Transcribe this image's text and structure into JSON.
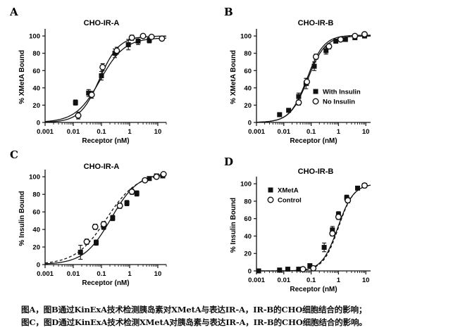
{
  "chart_data": [
    {
      "type": "scatter",
      "panel_letter": "A",
      "title": "CHO-IR-A",
      "xlabel": "Receptor (nM)",
      "ylabel": "% XMetA Bound",
      "x_scale": "log",
      "xlim": [
        0.001,
        20
      ],
      "ylim": [
        0,
        105
      ],
      "x_tick_labels": [
        "0.001",
        "0.01",
        "0.1",
        "1",
        "10"
      ],
      "y_tick_labels": [
        "0",
        "20",
        "40",
        "60",
        "80",
        "100"
      ],
      "series": [
        {
          "marker": "filled-square",
          "color": "#111111",
          "points": [
            {
              "x": 0.012,
              "y": 23,
              "err": 3
            },
            {
              "x": 0.035,
              "y": 34,
              "err": 4
            },
            {
              "x": 0.1,
              "y": 54,
              "err": 5
            },
            {
              "x": 0.3,
              "y": 80,
              "err": 5
            },
            {
              "x": 0.9,
              "y": 90,
              "err": 6
            },
            {
              "x": 2.0,
              "y": 94,
              "err": 4
            },
            {
              "x": 5.0,
              "y": 95,
              "err": 3
            }
          ],
          "fit": {
            "ec50": 0.09,
            "hill": 1.0,
            "top": 98,
            "bottom": 0,
            "style": "solid"
          }
        },
        {
          "marker": "open-circle",
          "color": "#111111",
          "points": [
            {
              "x": 0.015,
              "y": 8,
              "err": 4
            },
            {
              "x": 0.045,
              "y": 32,
              "err": 4
            },
            {
              "x": 0.11,
              "y": 64,
              "err": 4
            },
            {
              "x": 0.35,
              "y": 83,
              "err": 4
            },
            {
              "x": 1.2,
              "y": 98,
              "err": 3
            },
            {
              "x": 3.0,
              "y": 100,
              "err": 2
            },
            {
              "x": 6.0,
              "y": 99,
              "err": 2
            },
            {
              "x": 14.0,
              "y": 97,
              "err": 2
            }
          ],
          "fit": {
            "ec50": 0.085,
            "hill": 1.25,
            "top": 100,
            "bottom": 0,
            "style": "solid"
          }
        }
      ]
    },
    {
      "type": "scatter",
      "panel_letter": "B",
      "title": "CHO-IR-B",
      "xlabel": "Receptor (nM)",
      "ylabel": "% XMetA Bound",
      "x_scale": "log",
      "xlim": [
        0.001,
        15
      ],
      "ylim": [
        0,
        105
      ],
      "x_tick_labels": [
        "0.001",
        "0.01",
        "0.1",
        "1",
        "10"
      ],
      "y_tick_labels": [
        "0",
        "20",
        "40",
        "60",
        "80",
        "100"
      ],
      "legend": [
        {
          "label": "With Insulin",
          "marker": "filled-square"
        },
        {
          "label": "No Insulin",
          "marker": "open-circle"
        }
      ],
      "series": [
        {
          "name": "With Insulin",
          "marker": "filled-square",
          "color": "#111111",
          "points": [
            {
              "x": 0.007,
              "y": 9,
              "err": 2
            },
            {
              "x": 0.015,
              "y": 14,
              "err": 2
            },
            {
              "x": 0.035,
              "y": 30,
              "err": 4
            },
            {
              "x": 0.065,
              "y": 45,
              "err": 6
            },
            {
              "x": 0.13,
              "y": 65,
              "err": 5
            },
            {
              "x": 0.35,
              "y": 83,
              "err": 4
            },
            {
              "x": 0.8,
              "y": 94,
              "err": 2
            },
            {
              "x": 1.8,
              "y": 96,
              "err": 2
            },
            {
              "x": 4.0,
              "y": 98,
              "err": 2
            },
            {
              "x": 9.0,
              "y": 100,
              "err": 2
            }
          ],
          "fit": {
            "ec50": 0.075,
            "hill": 1.35,
            "top": 100,
            "bottom": 0,
            "style": "solid"
          }
        },
        {
          "name": "No Insulin",
          "marker": "open-circle",
          "color": "#111111",
          "points": [
            {
              "x": 0.035,
              "y": 23,
              "err": 3
            },
            {
              "x": 0.07,
              "y": 47,
              "err": 4
            },
            {
              "x": 0.15,
              "y": 76,
              "err": 3
            },
            {
              "x": 0.45,
              "y": 88,
              "err": 3
            },
            {
              "x": 1.2,
              "y": 96,
              "err": 2
            },
            {
              "x": 4.0,
              "y": 100,
              "err": 2
            },
            {
              "x": 9.0,
              "y": 102,
              "err": 2
            }
          ],
          "fit": {
            "ec50": 0.07,
            "hill": 1.4,
            "top": 101,
            "bottom": 0,
            "style": "solid"
          }
        }
      ]
    },
    {
      "type": "scatter",
      "panel_letter": "C",
      "title": "CHO-IR-A",
      "xlabel": "Receptor (nM)",
      "ylabel": "% Insulin Bound",
      "x_scale": "log",
      "xlim": [
        0.001,
        20
      ],
      "ylim": [
        0,
        105
      ],
      "x_tick_labels": [
        "0.001",
        "0.01",
        "0.1",
        "1",
        "10"
      ],
      "y_tick_labels": [
        "0",
        "20",
        "40",
        "60",
        "80",
        "100"
      ],
      "series": [
        {
          "marker": "filled-square",
          "color": "#111111",
          "points": [
            {
              "x": 0.018,
              "y": 14,
              "err": 8
            },
            {
              "x": 0.065,
              "y": 25,
              "err": 3
            },
            {
              "x": 0.12,
              "y": 43,
              "err": 3
            },
            {
              "x": 0.25,
              "y": 53,
              "err": 3
            },
            {
              "x": 0.8,
              "y": 70,
              "err": 3
            },
            {
              "x": 1.8,
              "y": 81,
              "err": 3
            },
            {
              "x": 5.0,
              "y": 98,
              "err": 2
            },
            {
              "x": 9.0,
              "y": 101,
              "err": 2
            },
            {
              "x": 15.0,
              "y": 101,
              "err": 2
            }
          ],
          "fit": {
            "ec50": 0.22,
            "hill": 0.9,
            "top": 105,
            "bottom": 0,
            "style": "solid"
          }
        },
        {
          "marker": "open-circle",
          "color": "#111111",
          "points": [
            {
              "x": 0.03,
              "y": 26,
              "err": 3
            },
            {
              "x": 0.06,
              "y": 43,
              "err": 3
            },
            {
              "x": 0.12,
              "y": 46,
              "err": 3
            },
            {
              "x": 0.45,
              "y": 67,
              "err": 3
            },
            {
              "x": 1.2,
              "y": 83,
              "err": 3
            },
            {
              "x": 3.5,
              "y": 96,
              "err": 2
            },
            {
              "x": 9.0,
              "y": 100,
              "err": 2
            },
            {
              "x": 16.0,
              "y": 103,
              "err": 2
            }
          ],
          "fit": {
            "ec50": 0.15,
            "hill": 0.8,
            "top": 104,
            "bottom": 0,
            "style": "dashed"
          }
        }
      ]
    },
    {
      "type": "scatter",
      "panel_letter": "D",
      "title": "CHO-IR-B",
      "xlabel": "Receptor (nM)",
      "ylabel": "% Insulin Bound",
      "x_scale": "log",
      "xlim": [
        0.001,
        15
      ],
      "ylim": [
        0,
        105
      ],
      "x_tick_labels": [
        "0.001",
        "0.01",
        "0.1",
        "1",
        "10"
      ],
      "y_tick_labels": [
        "0",
        "20",
        "40",
        "60",
        "80",
        "100"
      ],
      "legend": [
        {
          "label": "XMetA",
          "marker": "filled-square"
        },
        {
          "label": "Control",
          "marker": "open-circle"
        }
      ],
      "series": [
        {
          "name": "XMetA",
          "marker": "filled-square",
          "color": "#111111",
          "points": [
            {
              "x": 0.0012,
              "y": 0,
              "err": 1
            },
            {
              "x": 0.007,
              "y": 1,
              "err": 1
            },
            {
              "x": 0.014,
              "y": 2,
              "err": 1
            },
            {
              "x": 0.035,
              "y": 2,
              "err": 1
            },
            {
              "x": 0.09,
              "y": 6,
              "err": 2
            },
            {
              "x": 0.3,
              "y": 27,
              "err": 5
            },
            {
              "x": 0.6,
              "y": 47,
              "err": 4
            },
            {
              "x": 1.0,
              "y": 65,
              "err": 3
            },
            {
              "x": 2.0,
              "y": 84,
              "err": 3
            },
            {
              "x": 5.0,
              "y": 95,
              "err": 2
            },
            {
              "x": 9.0,
              "y": 98,
              "err": 2
            }
          ],
          "fit": {
            "ec50": 0.95,
            "hill": 1.5,
            "top": 100,
            "bottom": 0,
            "style": "solid"
          }
        },
        {
          "name": "Control",
          "marker": "open-circle",
          "color": "#111111",
          "points": [
            {
              "x": 0.05,
              "y": 2,
              "err": 1
            },
            {
              "x": 0.12,
              "y": 3,
              "err": 1
            },
            {
              "x": 0.6,
              "y": 43,
              "err": 3
            },
            {
              "x": 1.0,
              "y": 62,
              "err": 3
            },
            {
              "x": 2.2,
              "y": 81,
              "err": 3
            },
            {
              "x": 9.0,
              "y": 98,
              "err": 2
            }
          ],
          "fit": {
            "ec50": 1.0,
            "hill": 1.55,
            "top": 100,
            "bottom": 0,
            "style": "dashed"
          }
        }
      ]
    }
  ],
  "caption": {
    "line1": "图A，图B通过KinExA技术检测胰岛素对XMetA与表达IR-A，IR-B的CHO细胞结合的影响；",
    "line2": "图C，图D通过KinExA技术检测XMetA对胰岛素与表达IR-A，IR-B的CHO细胞结合的影响。"
  }
}
